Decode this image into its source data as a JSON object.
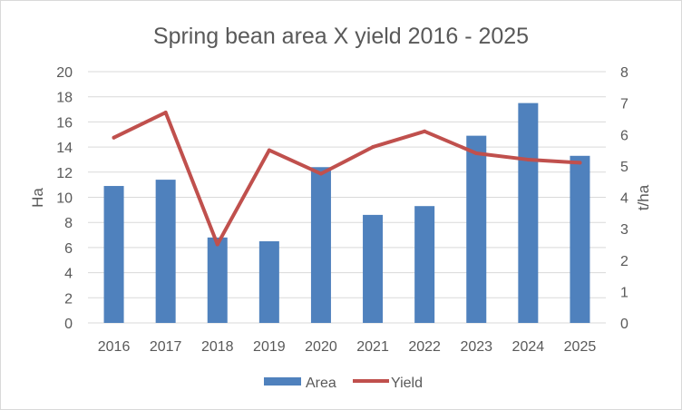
{
  "chart_data": {
    "type": "bar",
    "title": "Spring bean area X yield 2016 - 2025",
    "categories": [
      "2016",
      "2017",
      "2018",
      "2019",
      "2020",
      "2021",
      "2022",
      "2023",
      "2024",
      "2025"
    ],
    "series": [
      {
        "name": "Area",
        "type": "bar",
        "axis": "left",
        "values": [
          10.9,
          11.4,
          6.8,
          6.5,
          12.4,
          8.6,
          9.3,
          14.9,
          17.5,
          13.3
        ]
      },
      {
        "name": "Yield",
        "type": "line",
        "axis": "right",
        "values": [
          5.9,
          6.7,
          2.5,
          5.5,
          4.75,
          5.6,
          6.1,
          5.4,
          5.2,
          5.1
        ]
      }
    ],
    "ylabel": "Ha",
    "ylim": [
      0,
      20
    ],
    "yticks": [
      "0",
      "2",
      "4",
      "6",
      "8",
      "10",
      "12",
      "14",
      "16",
      "18",
      "20"
    ],
    "y2label": "t/ha",
    "y2lim": [
      0,
      8
    ],
    "y2ticks": [
      "0",
      "1",
      "2",
      "3",
      "4",
      "5",
      "6",
      "7",
      "8"
    ],
    "grid": true,
    "legend": "bottom",
    "colors": {
      "bar": "#4f81bd",
      "line": "#c0504d",
      "grid": "#d9d9d9",
      "text": "#595959"
    }
  }
}
